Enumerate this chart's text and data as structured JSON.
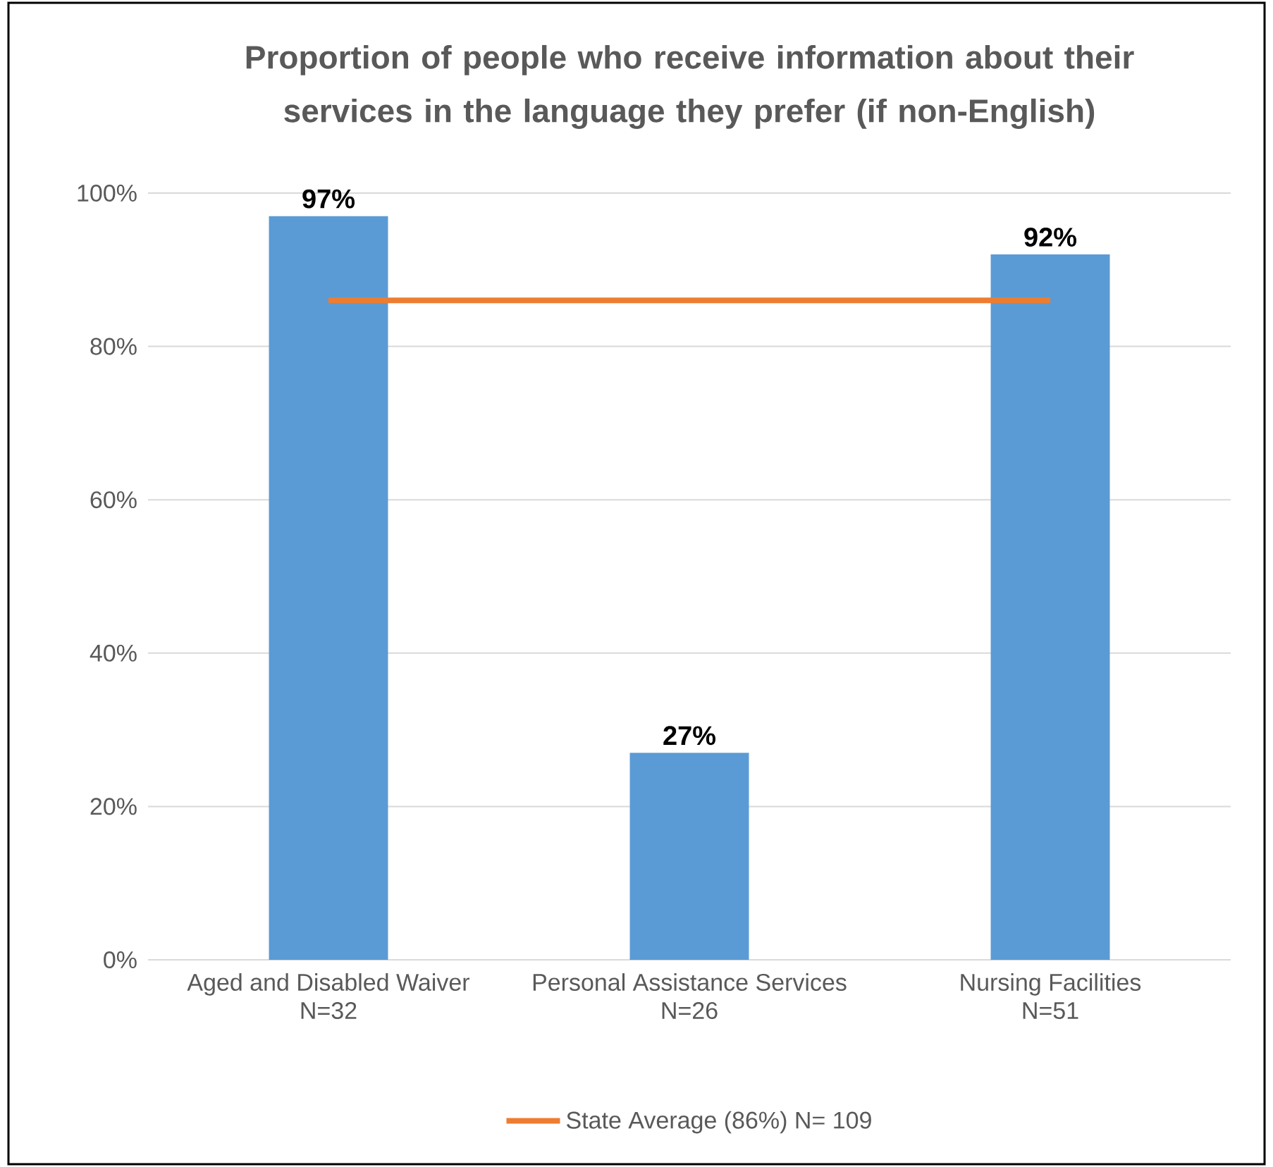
{
  "chart_data": {
    "type": "bar",
    "title": "Proportion of people who receive information about their services in the language they prefer (if non-English)",
    "categories": [
      "Aged and Disabled Waiver N=32",
      "Personal Assistance Services N=26",
      "Nursing Facilities N=51"
    ],
    "series": [
      {
        "color": "#5b9bd5",
        "values": [
          97,
          27,
          92
        ],
        "value_labels": [
          "97%",
          "27%",
          "92%"
        ]
      },
      {
        "type": "line",
        "name": "State Average (86%) N= 109",
        "color": "#ed7d31",
        "values": [
          86,
          86,
          86
        ]
      }
    ],
    "ylim": [
      0,
      100
    ],
    "yticks": [
      {
        "value": 0,
        "label": "0%"
      },
      {
        "value": 20,
        "label": "20%"
      },
      {
        "value": 40,
        "label": "40%"
      },
      {
        "value": 60,
        "label": "60%"
      },
      {
        "value": 80,
        "label": "80%"
      },
      {
        "value": 100,
        "label": "100%"
      }
    ],
    "grid": "y",
    "legend": "bottom"
  }
}
